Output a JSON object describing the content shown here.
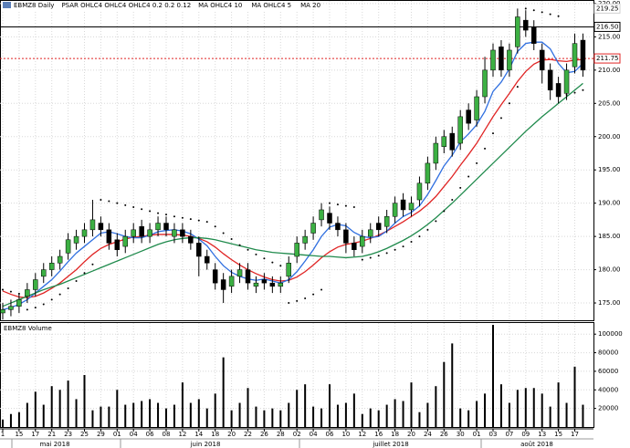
{
  "chart_data": [
    {
      "type": "candlestick",
      "title": "EBMZ8 Daily",
      "open": [
        173.5,
        174,
        174.5,
        176,
        177,
        179,
        180,
        181,
        182.5,
        184,
        185,
        186,
        187,
        186,
        184.5,
        183.5,
        185,
        186.5,
        185,
        186,
        187,
        185,
        186,
        185,
        184,
        182,
        180,
        178.5,
        177.5,
        179,
        180,
        177.5,
        178.5,
        178,
        177.5,
        179,
        182,
        184,
        185.5,
        187.5,
        188.5,
        187,
        186,
        184,
        183.5,
        185,
        187,
        186.5,
        188,
        190.5,
        189,
        190.5,
        193,
        196,
        198.5,
        200.5,
        199,
        204,
        202.5,
        206,
        210,
        213.5,
        210,
        213.5,
        217.5,
        216.5,
        213,
        210,
        208,
        206.5,
        210.5,
        214.5
      ],
      "high": [
        175,
        175.5,
        176.5,
        178,
        179.5,
        181,
        182,
        183,
        185.5,
        186,
        187,
        190.5,
        188,
        187,
        185.5,
        186,
        187,
        187.5,
        187,
        188,
        188,
        187,
        187,
        186,
        185,
        183,
        181,
        179.5,
        180,
        181,
        181,
        179,
        179.5,
        179,
        179,
        182,
        185,
        186,
        188,
        190,
        189.5,
        188,
        187,
        185,
        186,
        187,
        188,
        189,
        191,
        191.5,
        191,
        194,
        197,
        200,
        201,
        201.5,
        204,
        205,
        207,
        212,
        214,
        214.5,
        214,
        219.25,
        219,
        217.5,
        214,
        211,
        209,
        211,
        215.5,
        215.5
      ],
      "low": [
        172.5,
        173,
        173.5,
        175,
        176,
        178,
        179,
        180,
        181.5,
        183,
        184,
        185,
        185,
        183,
        182,
        182.5,
        184,
        184,
        184,
        185,
        185,
        184,
        184,
        183,
        179,
        180,
        177,
        175,
        176.5,
        178,
        177,
        176.5,
        177,
        176.5,
        176.5,
        178,
        181,
        183,
        184.5,
        186.5,
        186,
        185,
        182.5,
        182,
        182.5,
        184,
        185,
        185.5,
        187,
        188,
        188,
        189.5,
        192,
        195,
        197.5,
        197,
        198,
        201,
        201.5,
        205,
        209,
        209,
        209,
        212.5,
        215,
        213,
        208,
        205.5,
        205,
        205.5,
        209.5,
        209
      ],
      "close": [
        174,
        174.5,
        175.5,
        177,
        178.5,
        180,
        181,
        182,
        184.5,
        185,
        186,
        187.5,
        186,
        184,
        183,
        185,
        186,
        185,
        186,
        187,
        186,
        186,
        185,
        184,
        182,
        181,
        178,
        177,
        179,
        180,
        178,
        178,
        178,
        177.5,
        178,
        181,
        184,
        185,
        187,
        189,
        187,
        186,
        184,
        183,
        185,
        186,
        186,
        188,
        190,
        189,
        190,
        193,
        196,
        199,
        200,
        198,
        203,
        202,
        206,
        210,
        213,
        210,
        213,
        218,
        216,
        214,
        210,
        207,
        206,
        210,
        214,
        210
      ],
      "up_color": "#3cb043",
      "down_color": "#000000",
      "psar": {
        "name": "PSAR OHLC4 OHLC4 OHLC4 0.2 0.2 0.12",
        "color": "#000000",
        "values": [
          177,
          176.7,
          176.4,
          174,
          174.3,
          174.8,
          175.5,
          176.3,
          177.2,
          178.3,
          179.5,
          180.8,
          190.5,
          190.3,
          190,
          189.7,
          189.4,
          189.1,
          188.8,
          188.5,
          188.3,
          188,
          187.8,
          187.6,
          187.4,
          187.2,
          186.5,
          185.5,
          184.6,
          183.7,
          183,
          182.3,
          181.7,
          181.1,
          180.6,
          175,
          175.3,
          175.7,
          176.3,
          177,
          190,
          189.8,
          189.6,
          189.4,
          181.5,
          181.8,
          182.1,
          182.5,
          183,
          183.5,
          184.2,
          185,
          186,
          187.3,
          188.8,
          190.5,
          192.3,
          194,
          196,
          198.2,
          200.5,
          202.8,
          205,
          207.5,
          219.25,
          219,
          218.7,
          218.4,
          218.1,
          206.3,
          206.6,
          207
        ]
      },
      "series": [
        {
          "name": "MA OHLC4 10",
          "color": "#e02424",
          "values": [
            176.8,
            176.3,
            175.9,
            175.8,
            176,
            176.5,
            177.2,
            178,
            179,
            180,
            181.2,
            182.3,
            183.2,
            183.8,
            184.2,
            184.6,
            184.9,
            185,
            185.2,
            185.3,
            185.3,
            185.3,
            185.2,
            185,
            184.7,
            184.2,
            183.4,
            182.4,
            181.5,
            180.7,
            180,
            179.4,
            178.9,
            178.5,
            178.3,
            178.4,
            178.9,
            179.7,
            180.7,
            181.8,
            182.7,
            183.4,
            183.8,
            184,
            184.3,
            184.7,
            185.2,
            185.8,
            186.5,
            187.2,
            188,
            188.8,
            189.8,
            191,
            192.5,
            194,
            195.7,
            197.3,
            199,
            201,
            203,
            204.8,
            206.5,
            208.3,
            209.8,
            210.9,
            211.5,
            211.6,
            211.4,
            211.3,
            211.5,
            211.6
          ]
        },
        {
          "name": "MA OHLC4 5",
          "color": "#2f6fe0",
          "values": [
            174,
            174.3,
            174.8,
            175.5,
            176.5,
            177.5,
            178.5,
            179.8,
            181.2,
            182.5,
            183.5,
            184.5,
            185.5,
            185.7,
            185.4,
            185,
            184.8,
            184.8,
            185.2,
            185.7,
            185.9,
            186,
            185.8,
            185.4,
            184.6,
            183.6,
            182,
            180.6,
            179.6,
            179,
            178.6,
            178.4,
            178.6,
            178.3,
            178,
            178.5,
            179.7,
            181.3,
            183,
            185,
            186.4,
            186.8,
            186.6,
            185.6,
            185,
            184.8,
            185,
            185.8,
            187,
            188,
            188.6,
            189.6,
            191.3,
            193.4,
            195.6,
            197.2,
            199.2,
            200.4,
            201.8,
            203.8,
            206.8,
            208.2,
            210.2,
            212.8,
            214,
            214.2,
            214.2,
            213.2,
            211,
            209.6,
            209.8,
            211
          ]
        },
        {
          "name": "MA 20",
          "color": "#1f8a4c",
          "values": [
            174.5,
            175,
            175.5,
            176,
            176.5,
            177,
            177.4,
            177.8,
            178.3,
            178.8,
            179.3,
            179.8,
            180.3,
            180.8,
            181.3,
            181.8,
            182.3,
            182.8,
            183.3,
            183.8,
            184.2,
            184.5,
            184.7,
            184.8,
            184.8,
            184.7,
            184.5,
            184.2,
            183.9,
            183.6,
            183.3,
            183,
            182.8,
            182.6,
            182.5,
            182.4,
            182.3,
            182.2,
            182.1,
            182,
            182,
            181.9,
            181.8,
            181.9,
            182,
            182.3,
            182.7,
            183.2,
            183.8,
            184.4,
            185.1,
            185.9,
            186.8,
            187.8,
            188.9,
            190,
            191.2,
            192.4,
            193.6,
            194.8,
            196,
            197.2,
            198.4,
            199.6,
            200.8,
            201.9,
            203,
            204,
            205,
            206,
            207,
            208
          ]
        }
      ],
      "ylim": [
        172.4,
        220.4
      ],
      "yticks": [
        {
          "value": 175,
          "label": "175.00"
        },
        {
          "value": 180,
          "label": "180.00"
        },
        {
          "value": 185,
          "label": "185.00"
        },
        {
          "value": 190,
          "label": "190.00"
        },
        {
          "value": 195,
          "label": "195.00"
        },
        {
          "value": 200,
          "label": "200.00"
        },
        {
          "value": 205,
          "label": "205.00"
        },
        {
          "value": 210,
          "label": "210.00"
        },
        {
          "value": 215,
          "label": "215.00"
        },
        {
          "value": 220,
          "label": "220.00"
        }
      ],
      "price_markers": [
        {
          "value": 219.25,
          "label": "219.25",
          "color": "#d0d0d0",
          "line": "none"
        },
        {
          "value": 216.5,
          "label": "216.50",
          "color": "#000000",
          "line": "solid"
        },
        {
          "value": 211.75,
          "label": "211.75",
          "color": "#e02424",
          "line": "dotted"
        }
      ],
      "grid": true
    },
    {
      "type": "bar",
      "title": "EBMZ8 Volume",
      "color": "#000000",
      "categories": [
        "1",
        null,
        "15",
        null,
        "17",
        null,
        "21",
        null,
        "23",
        null,
        "25",
        null,
        "29",
        null,
        "01",
        null,
        "04",
        null,
        "06",
        null,
        "08",
        null,
        "12",
        null,
        "14",
        null,
        "18",
        null,
        "20",
        null,
        "22",
        null,
        "26",
        null,
        "28",
        null,
        "02",
        null,
        "04",
        null,
        "06",
        null,
        "10",
        null,
        "12",
        null,
        "16",
        null,
        "18",
        null,
        "20",
        null,
        "24",
        null,
        "26",
        null,
        "30",
        null,
        "01",
        null,
        "03",
        null,
        "07",
        null,
        "09",
        null,
        "13",
        null,
        "15",
        null,
        "17",
        null
      ],
      "months": [
        "mai 2018",
        "juin 2018",
        "juillet 2018",
        "août 2018"
      ],
      "values": [
        8000,
        14000,
        16000,
        26000,
        38000,
        24000,
        44000,
        40000,
        50000,
        30000,
        56000,
        18000,
        22000,
        22000,
        40000,
        24000,
        26000,
        28000,
        30000,
        26000,
        20000,
        24000,
        48000,
        26000,
        30000,
        20000,
        36000,
        75000,
        18000,
        26000,
        42000,
        22000,
        18000,
        20000,
        18000,
        26000,
        40000,
        46000,
        22000,
        20000,
        46000,
        24000,
        26000,
        36000,
        14000,
        20000,
        18000,
        24000,
        30000,
        28000,
        48000,
        16000,
        26000,
        44000,
        70000,
        90000,
        20000,
        18000,
        28000,
        36000,
        110000,
        46000,
        26000,
        40000,
        42000,
        42000,
        36000,
        22000,
        48000,
        26000,
        65000,
        24000
      ],
      "ylim": [
        0,
        112000
      ],
      "yticks": [
        20000,
        40000,
        60000,
        80000,
        100000
      ],
      "grid": true
    }
  ]
}
